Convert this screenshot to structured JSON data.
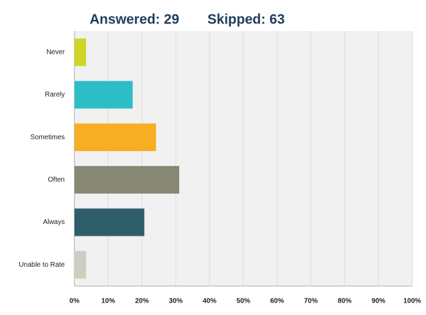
{
  "chart_data": {
    "type": "bar",
    "orientation": "horizontal",
    "answered": "Answered: 29",
    "skipped": "Skipped: 63",
    "categories": [
      "Never",
      "Rarely",
      "Sometimes",
      "Often",
      "Always",
      "Unable to Rate"
    ],
    "values": [
      3.45,
      17.24,
      24.14,
      31.03,
      20.69,
      3.45
    ],
    "colors": [
      "#cdd629",
      "#2dbdc6",
      "#f7ae22",
      "#878775",
      "#2f5e6b",
      "#cfcdbf"
    ],
    "xlim": [
      0,
      100
    ],
    "xticks": [
      {
        "value": 0,
        "label": "0%"
      },
      {
        "value": 10,
        "label": "10%"
      },
      {
        "value": 20,
        "label": "20%"
      },
      {
        "value": 30,
        "label": "30%"
      },
      {
        "value": 40,
        "label": "40%"
      },
      {
        "value": 50,
        "label": "50%"
      },
      {
        "value": 60,
        "label": "60%"
      },
      {
        "value": 70,
        "label": "70%"
      },
      {
        "value": 80,
        "label": "80%"
      },
      {
        "value": 90,
        "label": "90%"
      },
      {
        "value": 100,
        "label": "100%"
      }
    ],
    "grid": true
  }
}
